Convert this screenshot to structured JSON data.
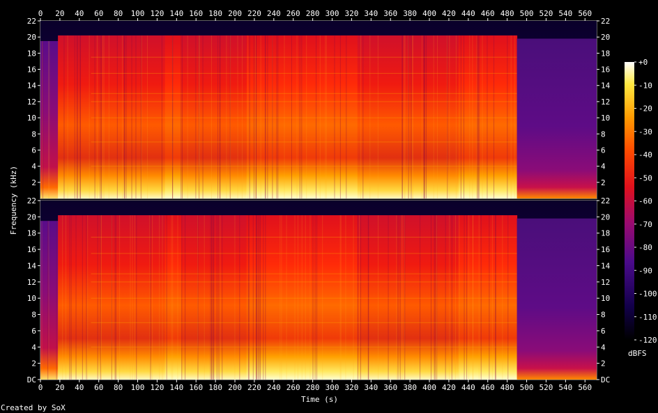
{
  "chart_data": {
    "type": "heatmap",
    "title": "",
    "xlabel": "Time (s)",
    "ylabel": "Frequency (kHz)",
    "x_ticks": [
      0,
      20,
      40,
      60,
      80,
      100,
      120,
      140,
      160,
      180,
      200,
      220,
      240,
      260,
      280,
      300,
      320,
      340,
      360,
      380,
      400,
      420,
      440,
      460,
      480,
      500,
      520,
      540,
      560
    ],
    "xlim": [
      0,
      572
    ],
    "channels": [
      {
        "y_ticks": [
          "22",
          "20",
          "18",
          "16",
          "14",
          "12",
          "10",
          "8",
          "6",
          "4",
          "2"
        ]
      },
      {
        "y_ticks": [
          "22",
          "20",
          "18",
          "16",
          "14",
          "12",
          "10",
          "8",
          "6",
          "4",
          "2",
          "DC"
        ]
      }
    ],
    "ylim_khz": [
      0,
      22
    ],
    "colorbar": {
      "label": "dBFS",
      "ticks": [
        "+0",
        "-10",
        "-20",
        "-30",
        "-40",
        "-50",
        "-60",
        "-70",
        "-80",
        "-90",
        "-100",
        "-110",
        "-120"
      ],
      "range_db": [
        -120,
        0
      ]
    },
    "segments": [
      {
        "t_start": 0,
        "t_end": 18,
        "level": "quiet",
        "cutoff_khz": 19.5
      },
      {
        "t_start": 18,
        "t_end": 52,
        "level": "loud",
        "cutoff_khz": 20.2
      },
      {
        "t_start": 52,
        "t_end": 128,
        "level": "loud",
        "cutoff_khz": 20.2
      },
      {
        "t_start": 128,
        "t_end": 145,
        "level": "louder",
        "cutoff_khz": 20.2
      },
      {
        "t_start": 145,
        "t_end": 212,
        "level": "loud",
        "cutoff_khz": 20.2
      },
      {
        "t_start": 212,
        "t_end": 326,
        "level": "louder",
        "cutoff_khz": 20.2
      },
      {
        "t_start": 326,
        "t_end": 430,
        "level": "loud",
        "cutoff_khz": 20.2
      },
      {
        "t_start": 430,
        "t_end": 490,
        "level": "louder",
        "cutoff_khz": 20.2
      },
      {
        "t_start": 490,
        "t_end": 572,
        "level": "fade",
        "cutoff_khz": 19.8
      }
    ],
    "credit": "Created by SoX"
  }
}
